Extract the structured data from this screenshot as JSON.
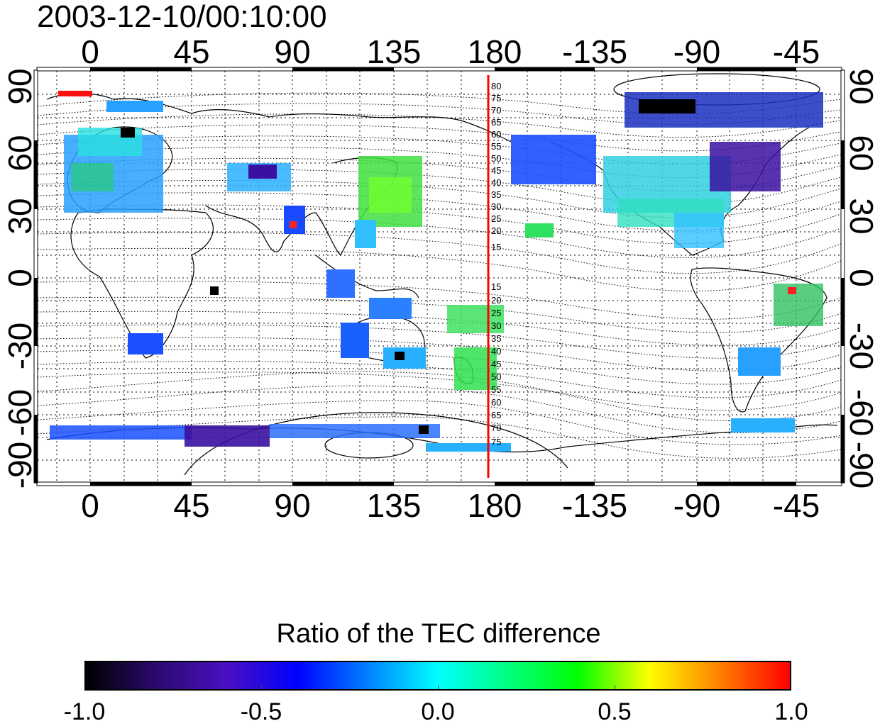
{
  "title": "2003-12-10/00:10:00",
  "axes": {
    "top_ticks": [
      "0",
      "45",
      "90",
      "135",
      "180",
      "-135",
      "-90",
      "-45"
    ],
    "bottom_ticks": [
      "0",
      "45",
      "90",
      "135",
      "180",
      "-135",
      "-90",
      "-45"
    ],
    "left_ticks": [
      "90",
      "60",
      "30",
      "0",
      "-30",
      "-60",
      "-90"
    ],
    "right_ticks": [
      "90",
      "60",
      "30",
      "0",
      "-30",
      "-60",
      "-90"
    ]
  },
  "meridian_line_color": "#ff0000",
  "contour_labels": {
    "north": [
      "80",
      "75",
      "70",
      "65",
      "60",
      "55",
      "50",
      "45",
      "40",
      "35",
      "30",
      "25",
      "20",
      "15"
    ],
    "south": [
      "15",
      "20",
      "25",
      "30",
      "35",
      "40",
      "45",
      "50",
      "55",
      "60",
      "65",
      "70",
      "75"
    ]
  },
  "legend": {
    "title": "Ratio of the TEC difference",
    "ticks": [
      "-1.0",
      "-0.5",
      "0.0",
      "0.5",
      "1.0"
    ],
    "colors": [
      "#000000",
      "#2a0a6e",
      "#4a10c0",
      "#0000ff",
      "#0080ff",
      "#00ffff",
      "#00ff80",
      "#00ff00",
      "#ffff00",
      "#ff8000",
      "#ff0000"
    ]
  }
}
